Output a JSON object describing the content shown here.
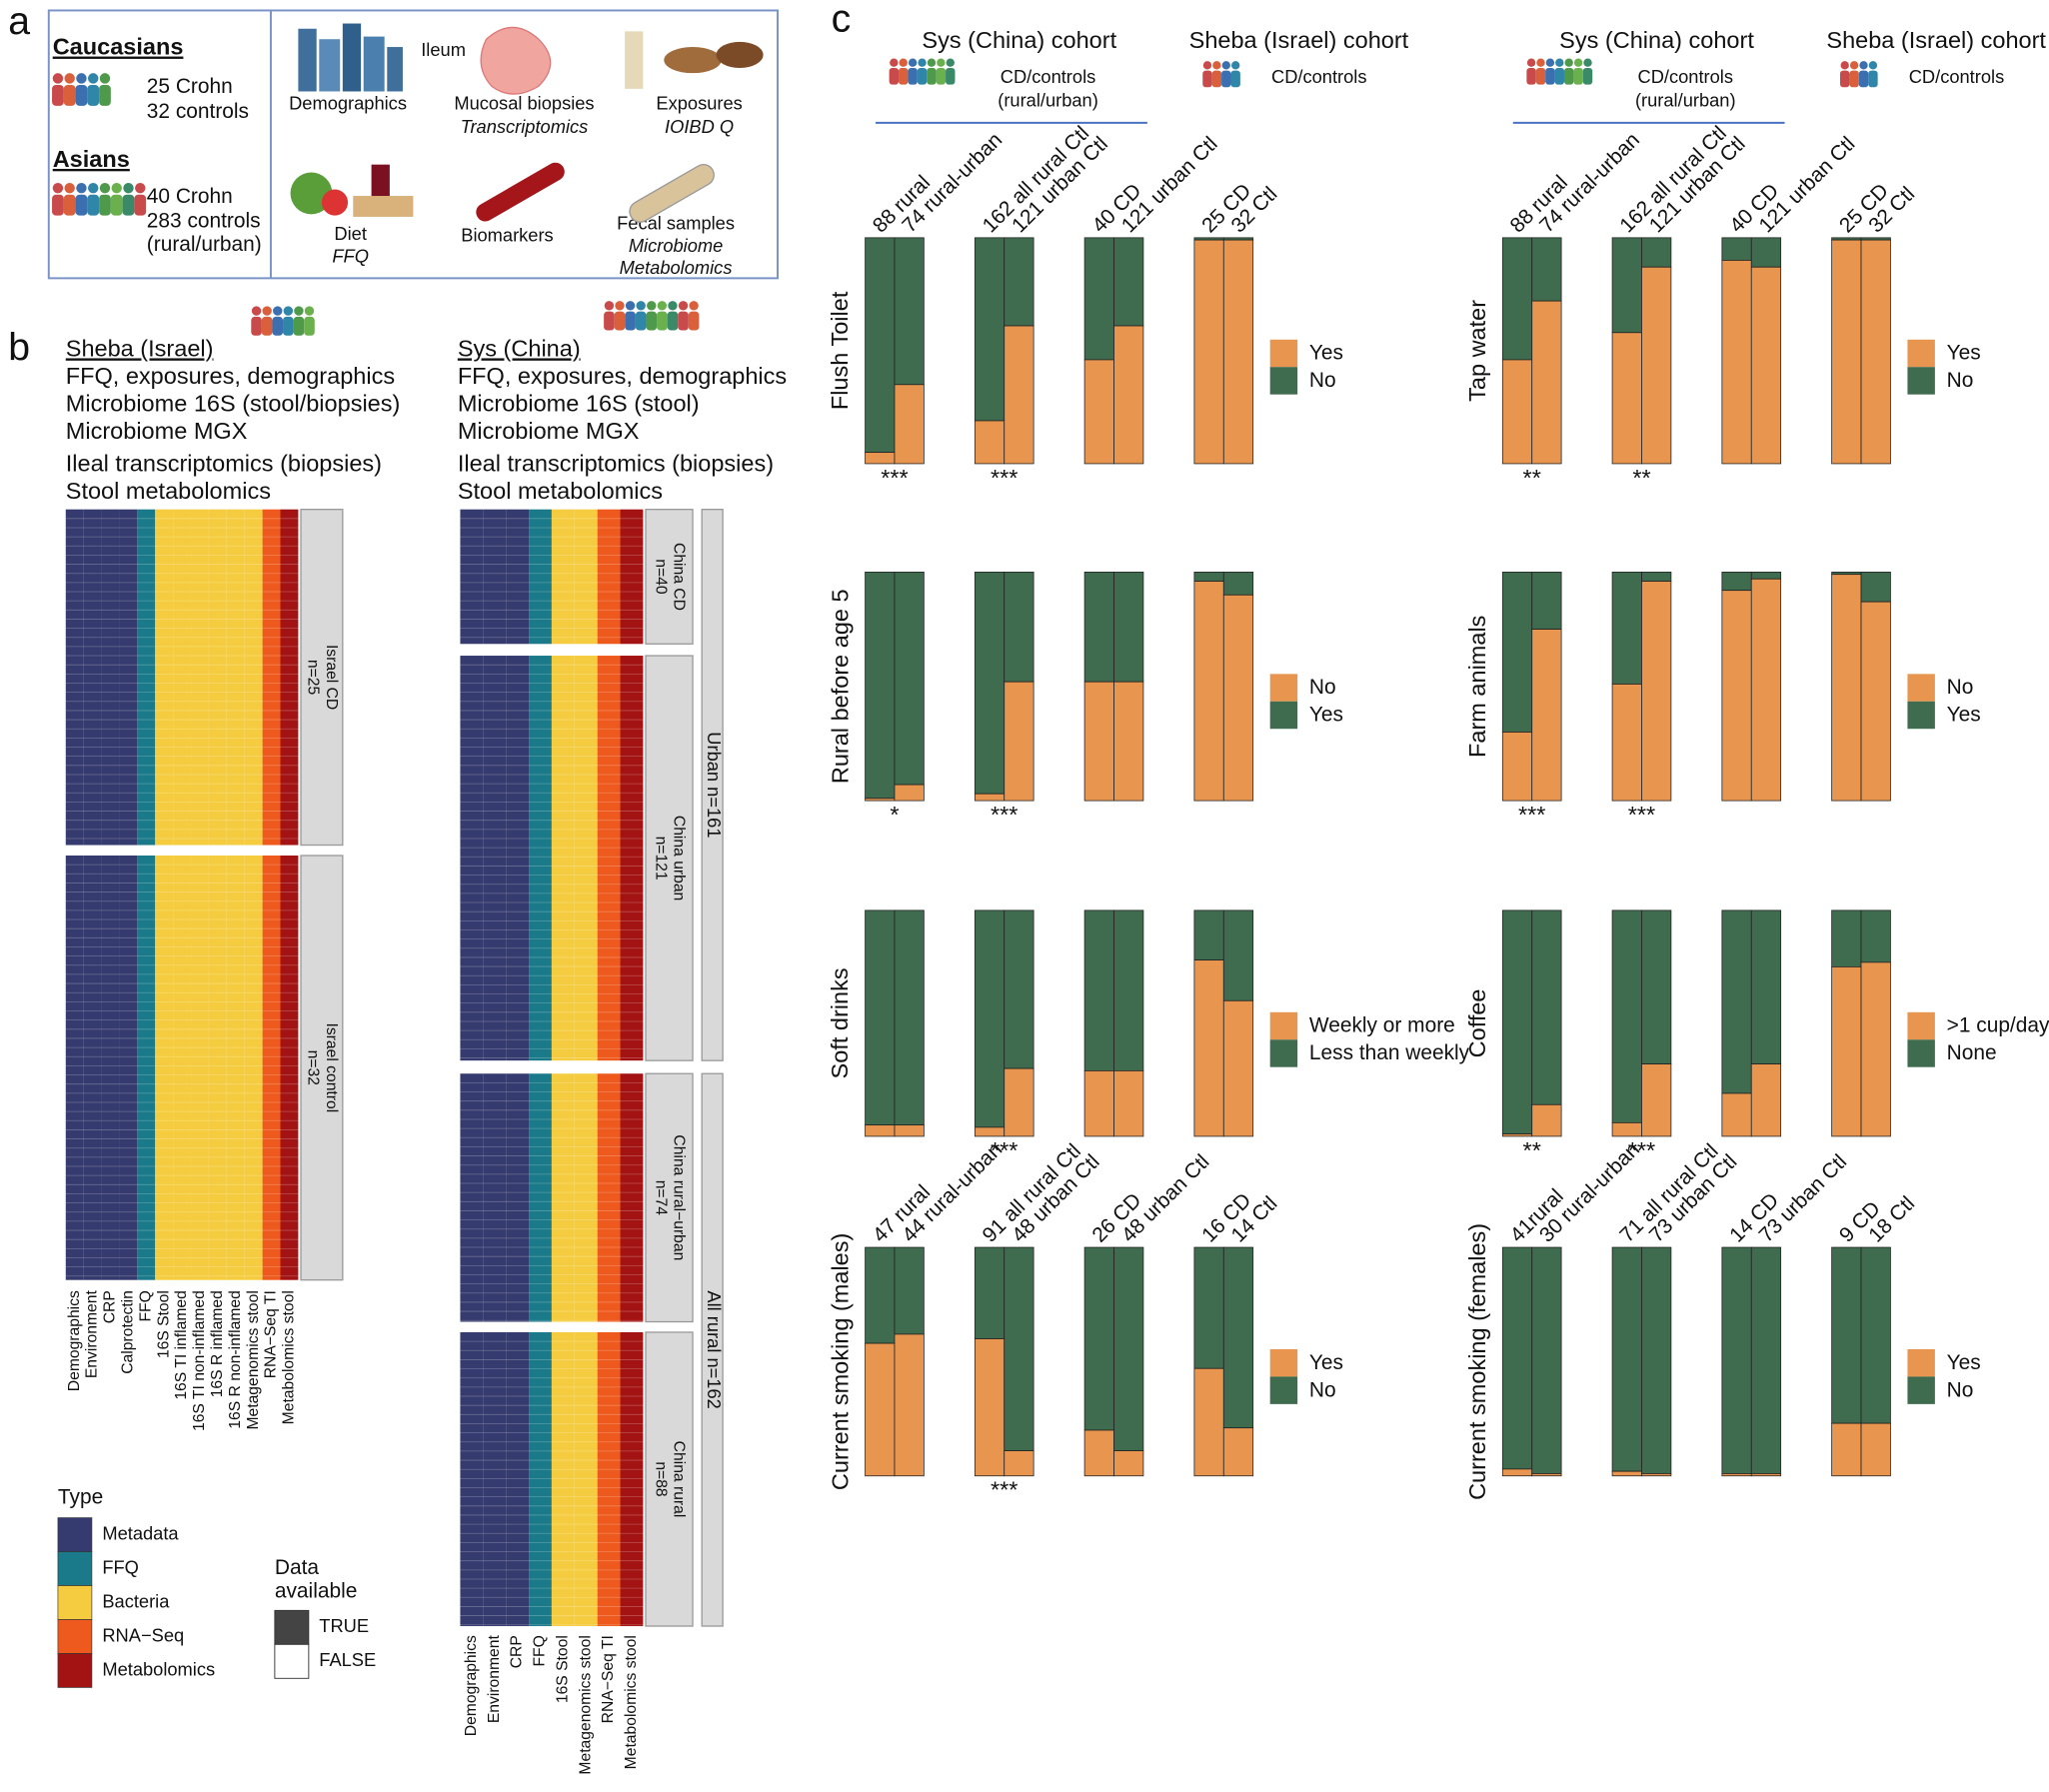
{
  "panel_a": {
    "label": "a",
    "caucasians": "Caucasians",
    "cau_lines": [
      "25 Crohn",
      "32 controls"
    ],
    "asians": "Asians",
    "asi_lines": [
      "40 Crohn",
      "283 controls",
      "(rural/urban)"
    ],
    "demographics": "Demographics",
    "ileum": "Ileum",
    "biopsies": "Mucosal biopsies",
    "transcriptomics": "Transcriptomics",
    "exposures": "Exposures",
    "ioibd": "IOIBD Q",
    "diet": "Diet",
    "ffq": "FFQ",
    "biomarkers": "Biomarkers",
    "fecal": "Fecal samples",
    "microbiome": "Microbiome",
    "metabolomics": "Metabolomics"
  },
  "panel_b": {
    "label": "b",
    "sheba": {
      "title": "Sheba (Israel)",
      "lines": [
        "FFQ, exposures, demographics",
        "Microbiome 16S (stool/biopsies)",
        "Microbiome MGX",
        "Ileal transcriptomics (biopsies)",
        "Stool metabolomics"
      ]
    },
    "sys": {
      "title": "Sys (China)",
      "lines": [
        "FFQ, exposures, demographics",
        "Microbiome 16S (stool)",
        "Microbiome MGX",
        "Ileal transcriptomics (biopsies)",
        "Stool metabolomics"
      ]
    },
    "sheba_heatmap": {
      "columns": [
        {
          "label": "Demographics",
          "color": "#353b6e"
        },
        {
          "label": "Environment",
          "color": "#353b6e"
        },
        {
          "label": "CRP",
          "color": "#353b6e"
        },
        {
          "label": "Calprotectin",
          "color": "#353b6e"
        },
        {
          "label": "FFQ",
          "color": "#1a7a8a"
        },
        {
          "label": "16S Stool",
          "color": "#f5cc3f"
        },
        {
          "label": "16S TI inflamed",
          "color": "#f5cc3f"
        },
        {
          "label": "16S TI non-inflamed",
          "color": "#f5cc3f"
        },
        {
          "label": "16S R inflamed",
          "color": "#f5cc3f"
        },
        {
          "label": "16S R non-inflamed",
          "color": "#f5cc3f"
        },
        {
          "label": "Metagenomics stool",
          "color": "#f5cc3f"
        },
        {
          "label": "RNA−Seq TI",
          "color": "#ee5a1d"
        },
        {
          "label": "Metabolomics stool",
          "color": "#a31313"
        }
      ],
      "blocks": [
        [
          "Israel CD",
          "n=25"
        ],
        [
          "Israel control",
          "n=32"
        ]
      ]
    },
    "sys_heatmap": {
      "columns": [
        {
          "label": "Demographics",
          "color": "#353b6e"
        },
        {
          "label": "Environment",
          "color": "#353b6e"
        },
        {
          "label": "CRP",
          "color": "#353b6e"
        },
        {
          "label": "FFQ",
          "color": "#1a7a8a"
        },
        {
          "label": "16S Stool",
          "color": "#f5cc3f"
        },
        {
          "label": "Metagenomics stool",
          "color": "#f5cc3f"
        },
        {
          "label": "RNA−Seq TI",
          "color": "#ee5a1d"
        },
        {
          "label": "Metabolomics stool",
          "color": "#a31313"
        }
      ],
      "blocks": [
        [
          "China CD",
          "n=40"
        ],
        [
          "China urban",
          "n=121"
        ],
        [
          "China rural−urban",
          "n=74"
        ],
        [
          "China rural",
          "n=88"
        ]
      ],
      "groups": [
        "Urban n=161",
        "All rural n=162"
      ]
    },
    "type_title": "Type",
    "types": [
      {
        "name": "Metadata",
        "color": "#353b6e"
      },
      {
        "name": "FFQ",
        "color": "#1a7a8a"
      },
      {
        "name": "Bacteria",
        "color": "#f5cc3f"
      },
      {
        "name": "RNA−Seq",
        "color": "#ee5a1d"
      },
      {
        "name": "Metabolomics",
        "color": "#a31313"
      }
    ],
    "avail_title": [
      "Data",
      "available"
    ],
    "avail": [
      {
        "name": "TRUE",
        "color": "#444444"
      },
      {
        "name": "FALSE",
        "color": "#ffffff"
      }
    ]
  },
  "panel_c": {
    "label": "c",
    "ylim": [
      0,
      100
    ],
    "colors": [
      "#e8964f",
      "#3f6b4f"
    ],
    "columns": [
      {
        "sys_title": "Sys (China) cohort",
        "sys_sub": [
          "CD/controls",
          "(rural/urban)"
        ],
        "sheba_title": "Sheba (Israel) cohort",
        "sheba_sub": "CD/controls",
        "plots": [
          {
            "ylabel": "Flush Toilet",
            "legend": [
              "Yes",
              "No"
            ],
            "bar_labels": [
              [
                "88 rural",
                "74 rural-urban"
              ],
              [
                "162 all rural Ctl",
                "121 urban Ctl"
              ],
              [
                "40 CD",
                "121 urban Ctl"
              ],
              [
                "25 CD",
                "32 Ctl"
              ]
            ],
            "groups": [
              [
                5,
                35
              ],
              [
                19,
                61
              ],
              [
                46,
                61
              ],
              [
                99,
                99
              ]
            ],
            "stars": [
              "***",
              "***",
              null,
              null
            ]
          },
          {
            "ylabel": "Rural before age 5",
            "legend": [
              "No",
              "Yes"
            ],
            "groups": [
              [
                1,
                7
              ],
              [
                3,
                52
              ],
              [
                52,
                52
              ],
              [
                96,
                90
              ]
            ],
            "stars": [
              "*",
              "***",
              null,
              null
            ]
          },
          {
            "ylabel": "Soft drinks",
            "legend": [
              "Weekly or more",
              "Less than weekly"
            ],
            "groups": [
              [
                5,
                5
              ],
              [
                4,
                30
              ],
              [
                29,
                29
              ],
              [
                78,
                60
              ]
            ],
            "stars": [
              null,
              "***",
              null,
              null
            ]
          },
          {
            "ylabel": "Current smoking (males)",
            "legend": [
              "Yes",
              "No"
            ],
            "bar_labels": [
              [
                "47 rural",
                "44 rural-urban"
              ],
              [
                "91 all rural Ctl",
                "48 urban Ctl"
              ],
              [
                "26 CD",
                "48 urban Ctl"
              ],
              [
                "16 CD",
                "14 Ctl"
              ]
            ],
            "groups": [
              [
                58,
                62
              ],
              [
                60,
                11
              ],
              [
                20,
                11
              ],
              [
                47,
                21
              ]
            ],
            "stars": [
              null,
              "***",
              null,
              null
            ]
          }
        ]
      },
      {
        "sys_title": "Sys (China) cohort",
        "sys_sub": [
          "CD/controls",
          "(rural/urban)"
        ],
        "sheba_title": "Sheba (Israel) cohort",
        "sheba_sub": "CD/controls",
        "plots": [
          {
            "ylabel": "Tap water",
            "legend": [
              "Yes",
              "No"
            ],
            "bar_labels": [
              [
                "88 rural",
                "74 rural-urban"
              ],
              [
                "162 all rural Ctl",
                "121 urban Ctl"
              ],
              [
                "40 CD",
                "121 urban Ctl"
              ],
              [
                "25 CD",
                "32 Ctl"
              ]
            ],
            "groups": [
              [
                46,
                72
              ],
              [
                58,
                87
              ],
              [
                90,
                87
              ],
              [
                99,
                99
              ]
            ],
            "stars": [
              "**",
              "**",
              null,
              null
            ]
          },
          {
            "ylabel": "Farm animals",
            "legend": [
              "No",
              "Yes"
            ],
            "groups": [
              [
                30,
                75
              ],
              [
                51,
                96
              ],
              [
                92,
                97
              ],
              [
                99,
                87
              ]
            ],
            "stars": [
              "***",
              "***",
              null,
              null
            ]
          },
          {
            "ylabel": "Coffee",
            "legend": [
              ">1 cup/day",
              "None"
            ],
            "groups": [
              [
                1,
                14
              ],
              [
                6,
                32
              ],
              [
                19,
                32
              ],
              [
                75,
                77
              ]
            ],
            "stars": [
              "**",
              "***",
              null,
              null
            ]
          },
          {
            "ylabel": "Current smoking (females)",
            "legend": [
              "Yes",
              "No"
            ],
            "bar_labels": [
              [
                "41rural",
                "30 rural-urban"
              ],
              [
                "71 all rural Ctl",
                "73 urban Ctl"
              ],
              [
                "14 CD",
                "73 urban Ctl"
              ],
              [
                "9 CD",
                "18 Ctl"
              ]
            ],
            "groups": [
              [
                3,
                1
              ],
              [
                2,
                1
              ],
              [
                1,
                1
              ],
              [
                23,
                23
              ]
            ],
            "stars": [
              null,
              null,
              null,
              null
            ]
          }
        ]
      }
    ]
  }
}
